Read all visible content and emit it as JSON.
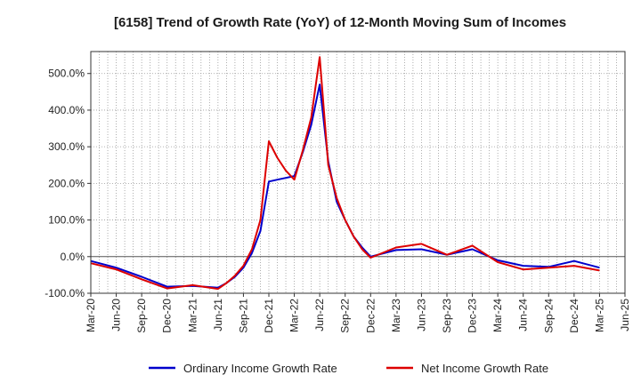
{
  "chart_data": {
    "type": "line",
    "title": "[6158]  Trend of Growth Rate (YoY) of 12-Month Moving Sum of Incomes",
    "xlabel": "",
    "ylabel": "",
    "x_tick_labels": [
      "Mar-20",
      "Jun-20",
      "Sep-20",
      "Dec-20",
      "Mar-21",
      "Jun-21",
      "Sep-21",
      "Dec-21",
      "Mar-22",
      "Jun-22",
      "Sep-22",
      "Dec-22",
      "Mar-23",
      "Jun-23",
      "Sep-23",
      "Dec-23",
      "Mar-24",
      "Jun-24",
      "Sep-24",
      "Dec-24",
      "Mar-25",
      "Jun-25"
    ],
    "y_tick_labels": [
      "-100.0%",
      "0.0%",
      "100.0%",
      "200.0%",
      "300.0%",
      "400.0%",
      "500.0%"
    ],
    "y_ticks": [
      -100,
      0,
      100,
      200,
      300,
      400,
      500
    ],
    "ylim": [
      -100,
      560
    ],
    "x_count": 64,
    "grid": true,
    "legend_position": "bottom",
    "series": [
      {
        "name": "Ordinary Income Growth Rate",
        "color": "#0000cc",
        "points": [
          [
            0,
            -12
          ],
          [
            3,
            -30
          ],
          [
            6,
            -55
          ],
          [
            9,
            -82
          ],
          [
            12,
            -80
          ],
          [
            15,
            -85
          ],
          [
            16,
            -72
          ],
          [
            17,
            -55
          ],
          [
            18,
            -30
          ],
          [
            19,
            10
          ],
          [
            20,
            70
          ],
          [
            21,
            205
          ],
          [
            22,
            210
          ],
          [
            23,
            215
          ],
          [
            24,
            220
          ],
          [
            25,
            285
          ],
          [
            26,
            360
          ],
          [
            27,
            470
          ],
          [
            28,
            260
          ],
          [
            29,
            150
          ],
          [
            30,
            100
          ],
          [
            31,
            55
          ],
          [
            32,
            25
          ],
          [
            33,
            0
          ],
          [
            36,
            18
          ],
          [
            39,
            20
          ],
          [
            42,
            5
          ],
          [
            45,
            20
          ],
          [
            48,
            -10
          ],
          [
            51,
            -25
          ],
          [
            54,
            -28
          ],
          [
            57,
            -12
          ],
          [
            60,
            -30
          ]
        ]
      },
      {
        "name": "Net Income Growth Rate",
        "color": "#dd0000",
        "points": [
          [
            0,
            -18
          ],
          [
            3,
            -35
          ],
          [
            6,
            -62
          ],
          [
            9,
            -87
          ],
          [
            12,
            -78
          ],
          [
            15,
            -88
          ],
          [
            16,
            -72
          ],
          [
            17,
            -52
          ],
          [
            18,
            -25
          ],
          [
            19,
            20
          ],
          [
            20,
            100
          ],
          [
            21,
            315
          ],
          [
            22,
            270
          ],
          [
            23,
            235
          ],
          [
            24,
            210
          ],
          [
            25,
            290
          ],
          [
            26,
            380
          ],
          [
            27,
            545
          ],
          [
            28,
            250
          ],
          [
            29,
            160
          ],
          [
            30,
            100
          ],
          [
            31,
            55
          ],
          [
            32,
            20
          ],
          [
            33,
            -3
          ],
          [
            36,
            25
          ],
          [
            39,
            35
          ],
          [
            42,
            5
          ],
          [
            45,
            30
          ],
          [
            48,
            -15
          ],
          [
            51,
            -35
          ],
          [
            54,
            -30
          ],
          [
            57,
            -25
          ],
          [
            60,
            -38
          ]
        ]
      }
    ]
  }
}
